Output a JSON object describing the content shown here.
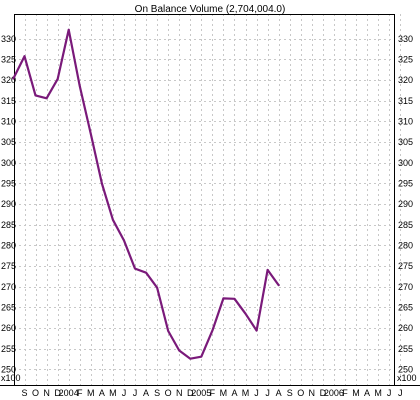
{
  "chart_data": {
    "type": "line",
    "title": "On Balance Volume (2,704,004.0)",
    "unit_label": "x100",
    "x_labels": [
      "S",
      "O",
      "N",
      "D",
      "2004",
      "F",
      "M",
      "A",
      "M",
      "J",
      "J",
      "A",
      "S",
      "O",
      "N",
      "D",
      "2005",
      "F",
      "M",
      "A",
      "M",
      "J",
      "J",
      "A",
      "S",
      "O",
      "N",
      "D",
      "2006",
      "F",
      "M",
      "A",
      "M",
      "J",
      "J"
    ],
    "yticks": [
      250,
      255,
      260,
      265,
      270,
      275,
      280,
      285,
      290,
      295,
      300,
      305,
      310,
      315,
      320,
      325,
      330
    ],
    "ylim": [
      246,
      336
    ],
    "grid": true,
    "series": [
      {
        "color": "#7a1a7a",
        "values": [
          320.4,
          325.8,
          316.3,
          315.6,
          320.3,
          332.2,
          318.5,
          307.0,
          295.0,
          286.2,
          281.2,
          274.4,
          273.4,
          269.8,
          259.3,
          254.6,
          252.6,
          253.1,
          259.4,
          267.2,
          267.1,
          263.5,
          259.4,
          274.1,
          270.4
        ]
      }
    ]
  }
}
